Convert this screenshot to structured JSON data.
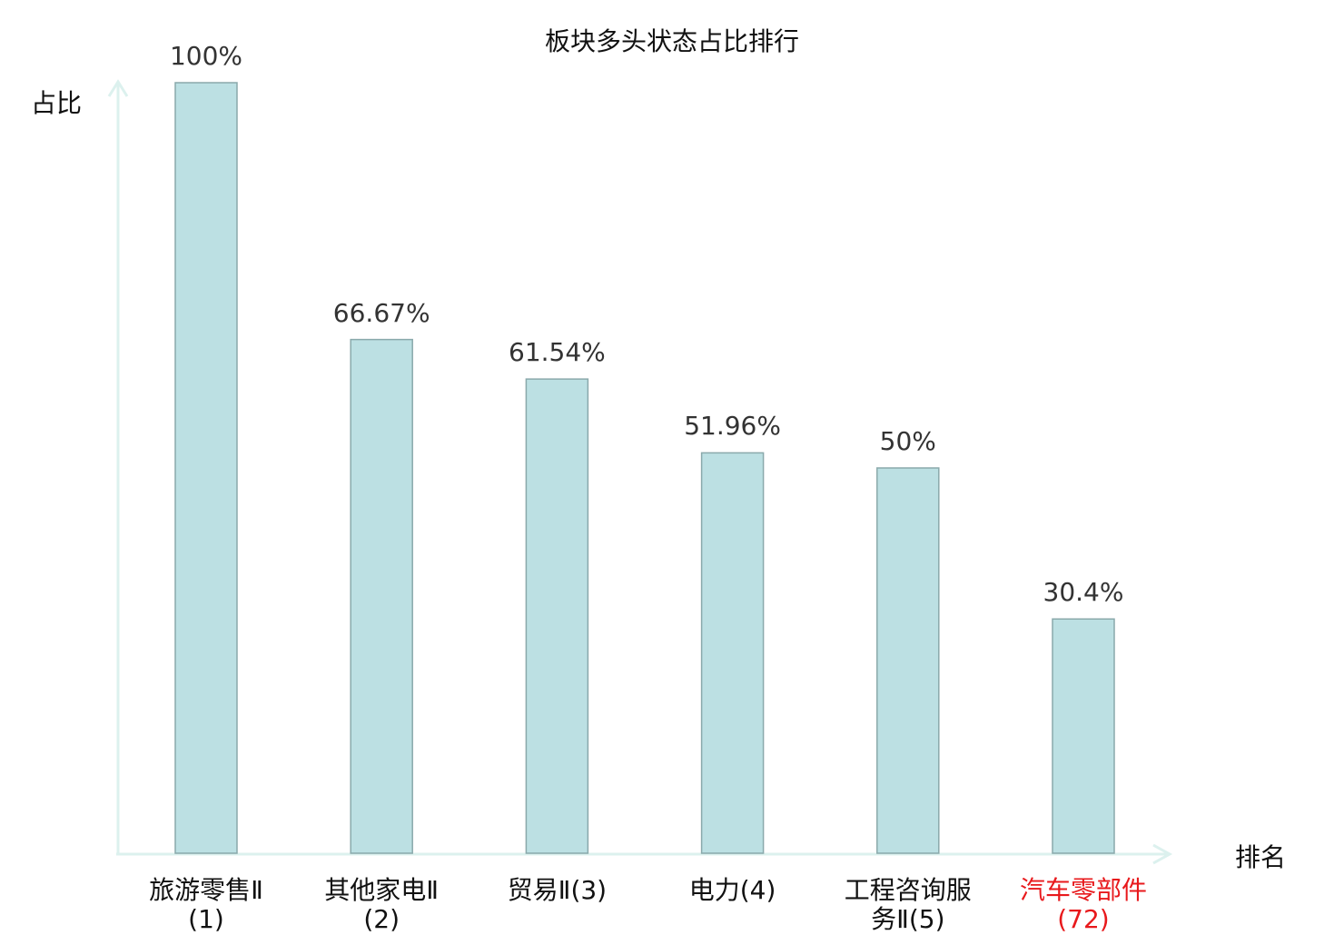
{
  "chart_data": {
    "type": "bar",
    "title": "板块多头状态占比排行",
    "xlabel": "排名",
    "ylabel": "占比",
    "categories": [
      "旅游零售Ⅱ(1)",
      "其他家电Ⅱ(2)",
      "贸易Ⅱ(3)",
      "电力(4)",
      "工程咨询服务Ⅱ(5)",
      "汽车零部件(72)"
    ],
    "values": [
      100,
      66.67,
      61.54,
      51.96,
      50,
      30.4
    ],
    "data_labels": [
      "100%",
      "66.67%",
      "61.54%",
      "51.96%",
      "50%",
      "30.4%"
    ],
    "highlighted_category_index": 5,
    "ylim": [
      0,
      100
    ],
    "grid": false,
    "colors": {
      "bar_fill": "#bce0e3",
      "bar_stroke": "#8aa9ab",
      "axis": "#dcf1ee",
      "highlight_label": "#e8191c",
      "label": "#111111"
    }
  }
}
